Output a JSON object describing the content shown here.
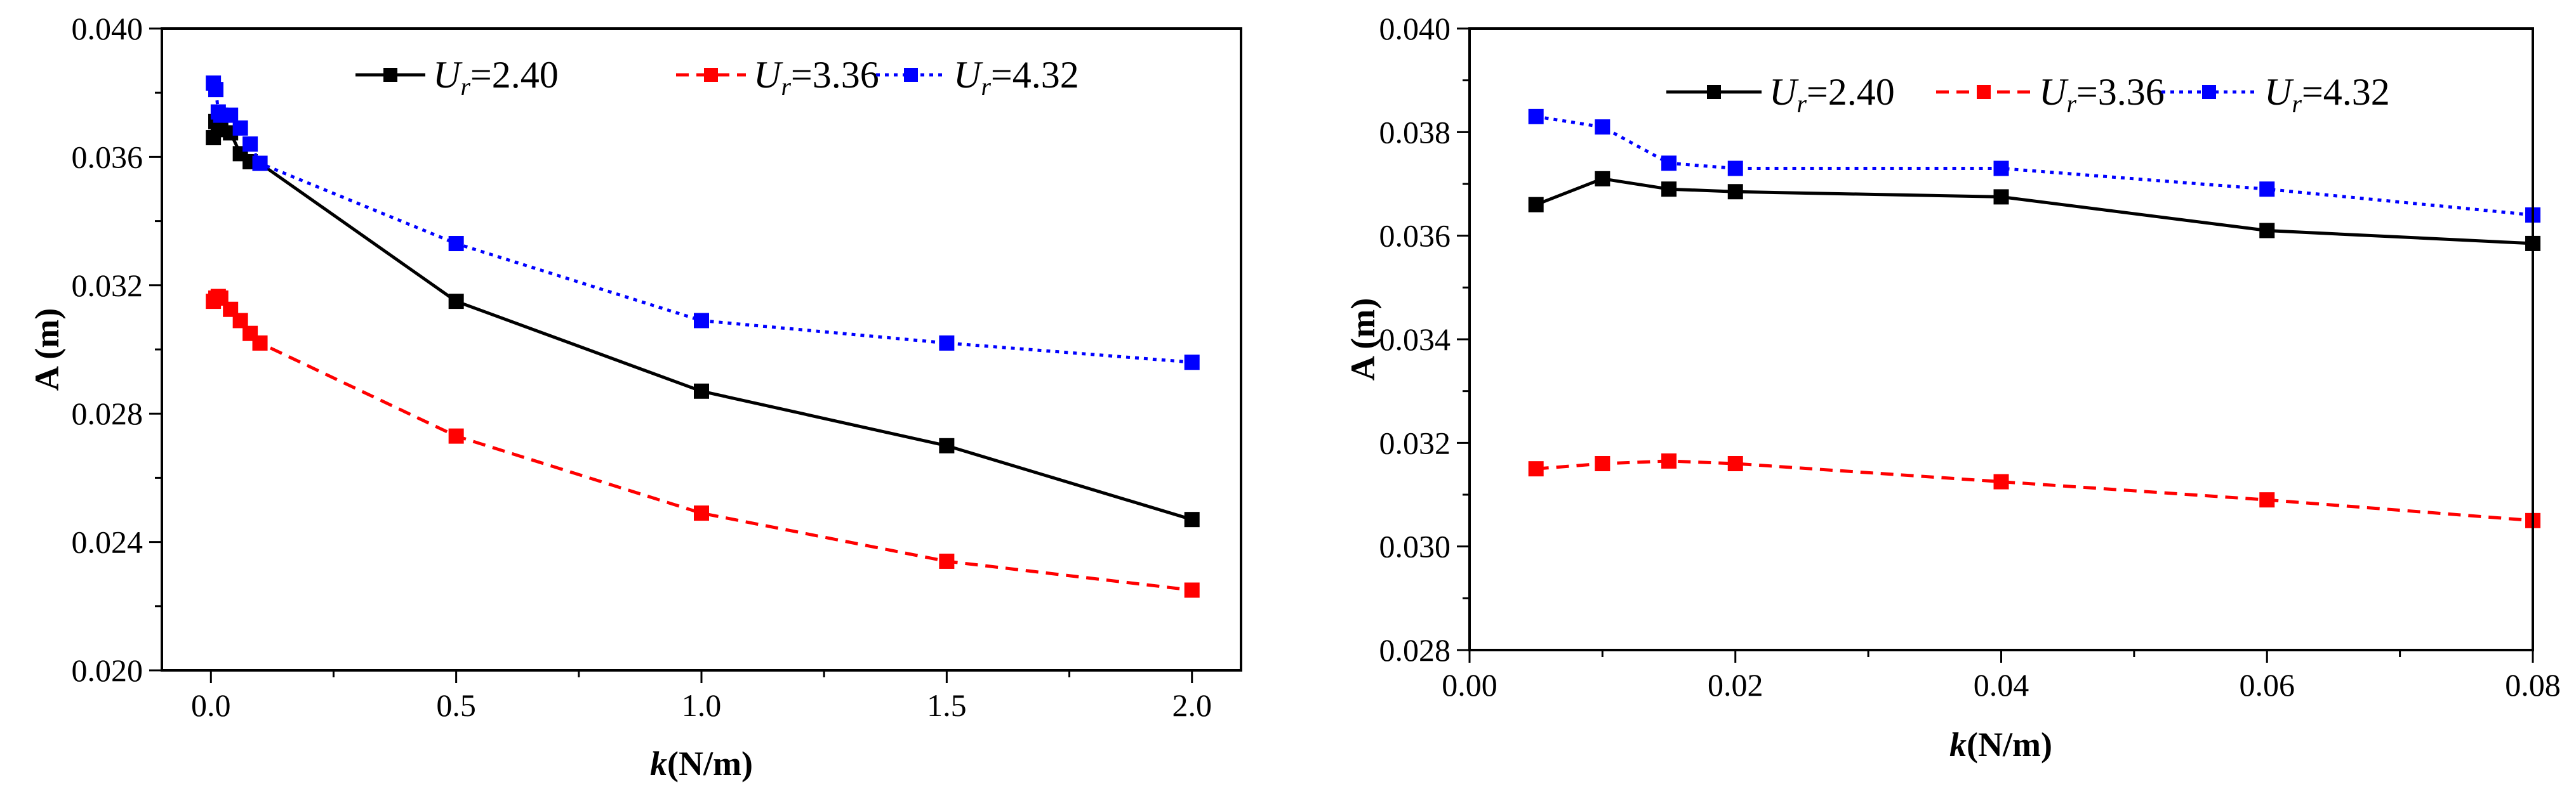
{
  "chart_data": [
    {
      "type": "line",
      "panel": "left",
      "xlabel": "k(N/m)",
      "xlabel_italic": "k",
      "xlabel_rest": "(N/m)",
      "ylabel": "A (m)",
      "xlim": [
        -0.1,
        2.1
      ],
      "ylim": [
        0.02,
        0.04
      ],
      "xticks": [
        0.0,
        0.5,
        1.0,
        1.5,
        2.0
      ],
      "xtick_labels": [
        "0.0",
        "0.5",
        "1.0",
        "1.5",
        "2.0"
      ],
      "xminor": [
        0.25,
        0.75,
        1.25,
        1.75
      ],
      "yticks": [
        0.02,
        0.024,
        0.028,
        0.032,
        0.036,
        0.04
      ],
      "ytick_labels": [
        "0.020",
        "0.024",
        "0.028",
        "0.032",
        "0.036",
        "0.040"
      ],
      "yminor": [
        0.022,
        0.026,
        0.03,
        0.034,
        0.038
      ],
      "legend_position": "top",
      "series": [
        {
          "name": "Ur=2.40",
          "legend_sym": "U",
          "legend_sub": "r",
          "legend_val": "=2.40",
          "color": "#000000",
          "dash": "solid",
          "x": [
            0.005,
            0.01,
            0.015,
            0.02,
            0.04,
            0.06,
            0.08,
            0.1,
            0.5,
            1.0,
            1.5,
            2.0
          ],
          "y": [
            0.0366,
            0.0371,
            0.0369,
            0.03685,
            0.03675,
            0.0361,
            0.03585,
            0.0358,
            0.0315,
            0.0287,
            0.027,
            0.0247
          ]
        },
        {
          "name": "Ur=3.36",
          "legend_sym": "U",
          "legend_sub": "r",
          "legend_val": "=3.36",
          "color": "#ff0000",
          "dash": "dashed",
          "x": [
            0.005,
            0.01,
            0.015,
            0.02,
            0.04,
            0.06,
            0.08,
            0.1,
            0.5,
            1.0,
            1.5,
            2.0
          ],
          "y": [
            0.0315,
            0.0316,
            0.03165,
            0.0316,
            0.03125,
            0.0309,
            0.0305,
            0.0302,
            0.0273,
            0.0249,
            0.0234,
            0.0225
          ]
        },
        {
          "name": "Ur=4.32",
          "legend_sym": "U",
          "legend_sub": "r",
          "legend_val": "=4.32",
          "color": "#0000ff",
          "dash": "dotted",
          "x": [
            0.005,
            0.01,
            0.015,
            0.02,
            0.04,
            0.06,
            0.08,
            0.1,
            0.5,
            1.0,
            1.5,
            2.0
          ],
          "y": [
            0.0383,
            0.0381,
            0.0374,
            0.0373,
            0.0373,
            0.0369,
            0.0364,
            0.0358,
            0.0333,
            0.0309,
            0.0302,
            0.0296
          ]
        }
      ]
    },
    {
      "type": "line",
      "panel": "right",
      "xlabel": "k(N/m)",
      "xlabel_italic": "k",
      "xlabel_rest": "(N/m)",
      "ylabel": "A (m)",
      "xlim": [
        0.0,
        0.08
      ],
      "ylim": [
        0.028,
        0.04
      ],
      "xticks": [
        0.0,
        0.02,
        0.04,
        0.06,
        0.08
      ],
      "xtick_labels": [
        "0.00",
        "0.02",
        "0.04",
        "0.06",
        "0.08"
      ],
      "xminor": [
        0.01,
        0.03,
        0.05,
        0.07
      ],
      "yticks": [
        0.028,
        0.03,
        0.032,
        0.034,
        0.036,
        0.038,
        0.04
      ],
      "ytick_labels": [
        "0.028",
        "0.030",
        "0.032",
        "0.034",
        "0.036",
        "0.038",
        "0.040"
      ],
      "yminor": [
        0.029,
        0.031,
        0.033,
        0.035,
        0.037,
        0.039
      ],
      "legend_position": "top",
      "series": [
        {
          "name": "Ur=2.40",
          "legend_sym": "U",
          "legend_sub": "r",
          "legend_val": "=2.40",
          "color": "#000000",
          "dash": "solid",
          "x": [
            0.005,
            0.01,
            0.015,
            0.02,
            0.04,
            0.06,
            0.08
          ],
          "y": [
            0.0366,
            0.0371,
            0.0369,
            0.03685,
            0.03675,
            0.0361,
            0.03585
          ]
        },
        {
          "name": "Ur=3.36",
          "legend_sym": "U",
          "legend_sub": "r",
          "legend_val": "=3.36",
          "color": "#ff0000",
          "dash": "dashed",
          "x": [
            0.005,
            0.01,
            0.015,
            0.02,
            0.04,
            0.06,
            0.08
          ],
          "y": [
            0.0315,
            0.0316,
            0.03165,
            0.0316,
            0.03125,
            0.0309,
            0.0305
          ]
        },
        {
          "name": "Ur=4.32",
          "legend_sym": "U",
          "legend_sub": "r",
          "legend_val": "=4.32",
          "color": "#0000ff",
          "dash": "dotted",
          "x": [
            0.005,
            0.01,
            0.015,
            0.02,
            0.04,
            0.06,
            0.08
          ],
          "y": [
            0.0383,
            0.0381,
            0.0374,
            0.0373,
            0.0373,
            0.0369,
            0.0364
          ]
        }
      ]
    }
  ]
}
